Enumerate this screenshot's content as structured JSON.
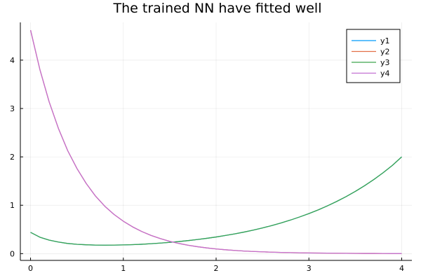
{
  "chart_data": {
    "type": "line",
    "title": "The trained NN have fitted well",
    "xlabel": "",
    "ylabel": "",
    "xlim": [
      -0.11,
      4.11
    ],
    "ylim": [
      -0.14,
      4.78
    ],
    "xticks": [
      0,
      1,
      2,
      3,
      4
    ],
    "yticks": [
      0,
      1,
      2,
      3,
      4
    ],
    "grid": true,
    "legend_position": "top-right",
    "x": [
      0,
      0.1,
      0.2,
      0.3,
      0.4,
      0.5,
      0.6,
      0.7,
      0.8,
      0.9,
      1.0,
      1.1,
      1.2,
      1.3,
      1.4,
      1.5,
      1.6,
      1.7,
      1.8,
      1.9,
      2.0,
      2.1,
      2.2,
      2.3,
      2.4,
      2.5,
      2.6,
      2.7,
      2.8,
      2.9,
      3.0,
      3.1,
      3.2,
      3.3,
      3.4,
      3.5,
      3.6,
      3.7,
      3.8,
      3.9,
      4.0
    ],
    "series": [
      {
        "name": "y1",
        "color": "#009AFA",
        "values": [
          0.44,
          0.34,
          0.28,
          0.24,
          0.21,
          0.193,
          0.183,
          0.177,
          0.175,
          0.176,
          0.18,
          0.186,
          0.194,
          0.205,
          0.218,
          0.233,
          0.25,
          0.27,
          0.292,
          0.317,
          0.344,
          0.375,
          0.408,
          0.445,
          0.486,
          0.531,
          0.58,
          0.634,
          0.693,
          0.758,
          0.828,
          0.904,
          0.988,
          1.079,
          1.178,
          1.286,
          1.404,
          1.532,
          1.672,
          1.824,
          2.0
        ]
      },
      {
        "name": "y2",
        "color": "#E36F47",
        "values": [
          4.62,
          3.81,
          3.14,
          2.59,
          2.13,
          1.76,
          1.45,
          1.19,
          0.98,
          0.81,
          0.67,
          0.553,
          0.456,
          0.376,
          0.31,
          0.255,
          0.21,
          0.173,
          0.143,
          0.118,
          0.097,
          0.08,
          0.066,
          0.054,
          0.045,
          0.037,
          0.03,
          0.025,
          0.021,
          0.017,
          0.014,
          0.012,
          0.01,
          0.008,
          0.007,
          0.005,
          0.004,
          0.004,
          0.003,
          0.002,
          0.002
        ]
      },
      {
        "name": "y3",
        "color": "#3EA44E",
        "values": [
          0.44,
          0.34,
          0.28,
          0.24,
          0.21,
          0.193,
          0.183,
          0.177,
          0.175,
          0.176,
          0.18,
          0.186,
          0.194,
          0.205,
          0.218,
          0.233,
          0.25,
          0.27,
          0.292,
          0.317,
          0.344,
          0.375,
          0.408,
          0.445,
          0.486,
          0.531,
          0.58,
          0.634,
          0.693,
          0.758,
          0.828,
          0.904,
          0.988,
          1.079,
          1.178,
          1.286,
          1.404,
          1.532,
          1.672,
          1.824,
          2.0
        ]
      },
      {
        "name": "y4",
        "color": "#C271D2",
        "values": [
          4.62,
          3.81,
          3.14,
          2.59,
          2.13,
          1.76,
          1.45,
          1.19,
          0.98,
          0.81,
          0.67,
          0.553,
          0.456,
          0.376,
          0.31,
          0.255,
          0.21,
          0.173,
          0.143,
          0.118,
          0.097,
          0.08,
          0.066,
          0.054,
          0.045,
          0.037,
          0.03,
          0.025,
          0.021,
          0.017,
          0.014,
          0.012,
          0.01,
          0.008,
          0.007,
          0.005,
          0.004,
          0.004,
          0.003,
          0.002,
          0.002
        ]
      }
    ]
  }
}
